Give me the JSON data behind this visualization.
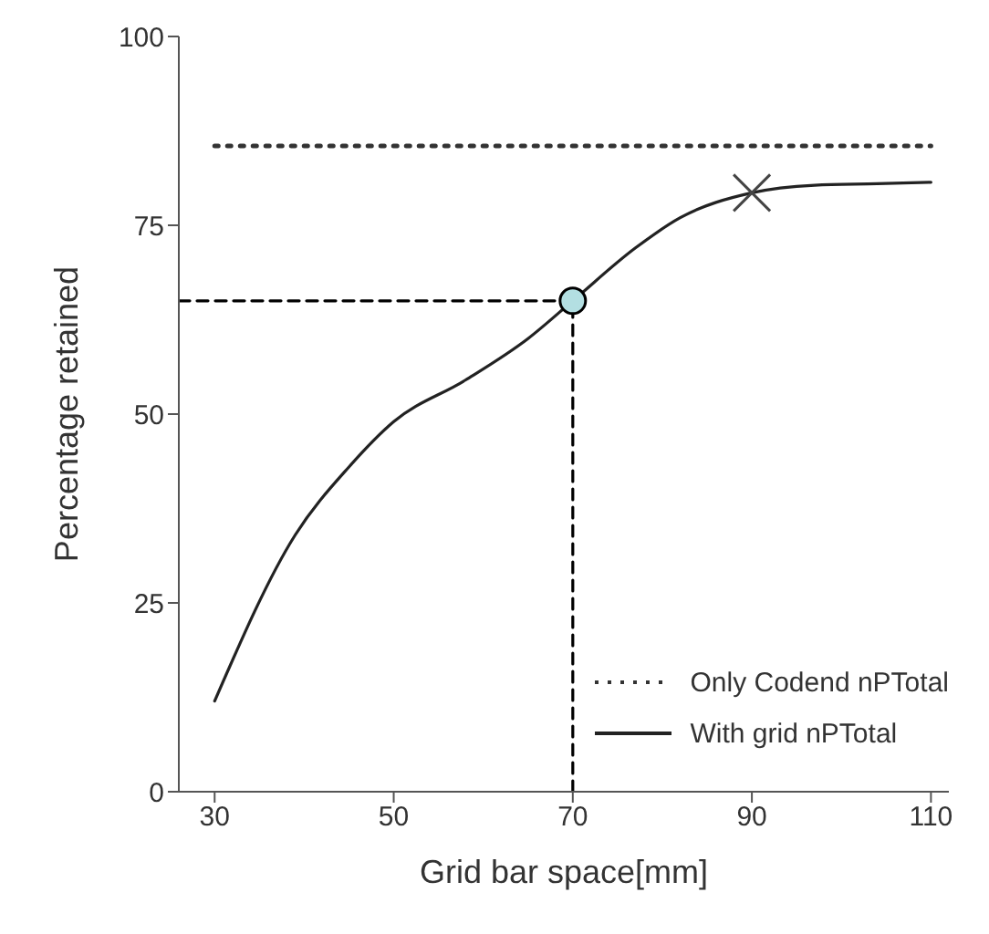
{
  "chart_data": {
    "type": "line",
    "xlabel": "Grid bar space[mm]",
    "ylabel": "Percentage retained",
    "xlim": [
      26,
      112
    ],
    "ylim": [
      0,
      100
    ],
    "xticks": [
      30,
      50,
      70,
      90,
      110
    ],
    "yticks": [
      0,
      25,
      50,
      75,
      100
    ],
    "grid": false,
    "legend": "bottom right",
    "series": [
      {
        "name": "Only Codend nPTotal",
        "line_style": "dotted",
        "marker": "none",
        "color": "#333333",
        "x": [
          30,
          110
        ],
        "values": [
          85.5,
          85.5
        ]
      },
      {
        "name": "With grid nPTotal",
        "line_style": "solid",
        "marker": "none",
        "color": "#222222",
        "x": [
          30,
          39,
          45,
          50,
          58,
          65,
          70,
          77,
          82,
          90,
          97,
          104,
          110
        ],
        "values": [
          12,
          34,
          43,
          49,
          54.5,
          60,
          65,
          72,
          76,
          79.3,
          80.3,
          80.5,
          80.7
        ]
      },
      {
        "line_style": "dashed",
        "marker": "none",
        "color": "#000000",
        "x": [
          26,
          70
        ],
        "values": [
          65,
          65
        ]
      },
      {
        "line_style": "dashed",
        "marker": "none",
        "color": "#000000",
        "x": [
          70,
          70
        ],
        "values": [
          0,
          65
        ]
      },
      {
        "type": "scatter",
        "marker": "circle",
        "color": "#b3dfe2",
        "x": [
          70
        ],
        "values": [
          65
        ]
      },
      {
        "type": "scatter",
        "marker": "cross",
        "color": "#444444",
        "x": [
          90
        ],
        "values": [
          79.3
        ]
      }
    ]
  }
}
